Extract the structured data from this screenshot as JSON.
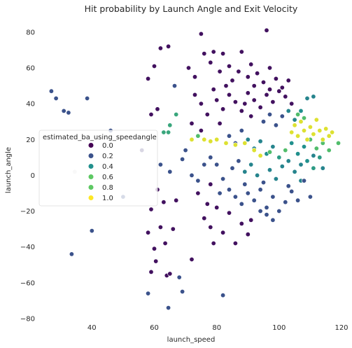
{
  "chart_data": {
    "type": "scatter",
    "title": "Hit probability by Launch Angle and Exit Velocity",
    "xlabel": "launch_speed",
    "ylabel": "launch_angle",
    "xlim": [
      24,
      120
    ],
    "ylim": [
      -82,
      87
    ],
    "xticks": [
      40,
      60,
      80,
      100,
      120
    ],
    "yticks": [
      -80,
      -60,
      -40,
      -20,
      0,
      20,
      40,
      60,
      80
    ],
    "grid": false,
    "hue": "estimated_ba_using_speedangle",
    "colormap": "viridis",
    "legend": {
      "title": "estimated_ba_using_speedangle",
      "placement": "center-left",
      "entries": [
        {
          "label": "0.0",
          "value": 0.0,
          "color": "#440154"
        },
        {
          "label": "0.2",
          "value": 0.2,
          "color": "#3b528b"
        },
        {
          "label": "0.4",
          "value": 0.4,
          "color": "#21908d"
        },
        {
          "label": "0.6",
          "value": 0.6,
          "color": "#5dc863"
        },
        {
          "label": "0.8",
          "value": 0.8,
          "color": "#5dc863"
        },
        {
          "label": "1.0",
          "value": 1.0,
          "color": "#fde725"
        }
      ]
    },
    "points": [
      {
        "x": 27,
        "y": 47,
        "v": 0.25
      },
      {
        "x": 28.5,
        "y": 43,
        "v": 0.25
      },
      {
        "x": 31,
        "y": 36,
        "v": 0.25
      },
      {
        "x": 32.5,
        "y": 35,
        "v": 0.25
      },
      {
        "x": 38.5,
        "y": 43,
        "v": 0.25
      },
      {
        "x": 34.5,
        "y": 2,
        "v": 0.15
      },
      {
        "x": 33.5,
        "y": -44,
        "v": 0.25
      },
      {
        "x": 40,
        "y": -31,
        "v": 0.25
      },
      {
        "x": 46,
        "y": 25,
        "v": 0.25
      },
      {
        "x": 50,
        "y": -12,
        "v": 0.25
      },
      {
        "x": 56,
        "y": 14,
        "v": 0.15
      },
      {
        "x": 58,
        "y": 54,
        "v": 0.05
      },
      {
        "x": 60,
        "y": 61,
        "v": 0.05
      },
      {
        "x": 62,
        "y": 71,
        "v": 0.05
      },
      {
        "x": 64.5,
        "y": 72,
        "v": 0.05
      },
      {
        "x": 59,
        "y": 34,
        "v": 0.05
      },
      {
        "x": 61,
        "y": 37,
        "v": 0.05
      },
      {
        "x": 66.5,
        "y": 50,
        "v": 0.25
      },
      {
        "x": 63,
        "y": 24,
        "v": 0.6
      },
      {
        "x": 64.5,
        "y": 24,
        "v": 0.6
      },
      {
        "x": 65,
        "y": 28,
        "v": 0.6
      },
      {
        "x": 67,
        "y": 34,
        "v": 0.6
      },
      {
        "x": 58,
        "y": -32,
        "v": 0.05
      },
      {
        "x": 58,
        "y": -66,
        "v": 0.25
      },
      {
        "x": 59,
        "y": -54,
        "v": 0.05
      },
      {
        "x": 60,
        "y": -41,
        "v": 0.05
      },
      {
        "x": 60.5,
        "y": -48,
        "v": 0.05
      },
      {
        "x": 62,
        "y": -29,
        "v": 0.05
      },
      {
        "x": 63.5,
        "y": -38,
        "v": 0.05
      },
      {
        "x": 64,
        "y": -56,
        "v": 0.05
      },
      {
        "x": 64.5,
        "y": -74,
        "v": 0.25
      },
      {
        "x": 65,
        "y": -55,
        "v": 0.05
      },
      {
        "x": 66,
        "y": -30,
        "v": 0.05
      },
      {
        "x": 68,
        "y": -57,
        "v": 0.25
      },
      {
        "x": 69,
        "y": -65,
        "v": 0.25
      },
      {
        "x": 72,
        "y": -47,
        "v": 0.05
      },
      {
        "x": 82,
        "y": -67,
        "v": 0.25
      },
      {
        "x": 59,
        "y": -19,
        "v": 0.05
      },
      {
        "x": 61,
        "y": -8,
        "v": 0.05
      },
      {
        "x": 63,
        "y": -15,
        "v": 0.05
      },
      {
        "x": 62,
        "y": 6,
        "v": 0.25
      },
      {
        "x": 65,
        "y": 2,
        "v": 0.25
      },
      {
        "x": 67,
        "y": -14,
        "v": 0.05
      },
      {
        "x": 69,
        "y": 9,
        "v": 0.25
      },
      {
        "x": 70,
        "y": 14,
        "v": 0.25
      },
      {
        "x": 72,
        "y": 0,
        "v": 0.25
      },
      {
        "x": 74,
        "y": -10,
        "v": 0.05
      },
      {
        "x": 76,
        "y": -24,
        "v": 0.05
      },
      {
        "x": 78,
        "y": -29,
        "v": 0.05
      },
      {
        "x": 80,
        "y": -18,
        "v": 0.05
      },
      {
        "x": 82,
        "y": -32,
        "v": 0.05
      },
      {
        "x": 84,
        "y": -21,
        "v": 0.05
      },
      {
        "x": 86,
        "y": -38,
        "v": 0.05
      },
      {
        "x": 88,
        "y": -27,
        "v": 0.05
      },
      {
        "x": 90,
        "y": -33,
        "v": 0.05
      },
      {
        "x": 91,
        "y": -25,
        "v": 0.05
      },
      {
        "x": 78,
        "y": -5,
        "v": 0.05
      },
      {
        "x": 76,
        "y": 6,
        "v": 0.25
      },
      {
        "x": 74,
        "y": -3,
        "v": 0.25
      },
      {
        "x": 77,
        "y": -16,
        "v": 0.05
      },
      {
        "x": 81,
        "y": -10,
        "v": 0.25
      },
      {
        "x": 79,
        "y": -38,
        "v": 0.05
      },
      {
        "x": 71,
        "y": 60,
        "v": 0.05
      },
      {
        "x": 73,
        "y": 55,
        "v": 0.05
      },
      {
        "x": 75,
        "y": 79,
        "v": 0.05
      },
      {
        "x": 76,
        "y": 68,
        "v": 0.05
      },
      {
        "x": 78,
        "y": 63,
        "v": 0.05
      },
      {
        "x": 79,
        "y": 69,
        "v": 0.05
      },
      {
        "x": 81,
        "y": 58,
        "v": 0.05
      },
      {
        "x": 82,
        "y": 68,
        "v": 0.05
      },
      {
        "x": 84,
        "y": 61,
        "v": 0.05
      },
      {
        "x": 85,
        "y": 53,
        "v": 0.05
      },
      {
        "x": 87,
        "y": 58,
        "v": 0.05
      },
      {
        "x": 88,
        "y": 69,
        "v": 0.05
      },
      {
        "x": 90,
        "y": 55,
        "v": 0.05
      },
      {
        "x": 91,
        "y": 62,
        "v": 0.05
      },
      {
        "x": 93,
        "y": 57,
        "v": 0.05
      },
      {
        "x": 95,
        "y": 52,
        "v": 0.05
      },
      {
        "x": 96,
        "y": 81,
        "v": 0.05
      },
      {
        "x": 97,
        "y": 60,
        "v": 0.05
      },
      {
        "x": 99,
        "y": 54,
        "v": 0.05
      },
      {
        "x": 101,
        "y": 49,
        "v": 0.05
      },
      {
        "x": 103,
        "y": 53,
        "v": 0.05
      },
      {
        "x": 73,
        "y": 45,
        "v": 0.05
      },
      {
        "x": 75,
        "y": 40,
        "v": 0.05
      },
      {
        "x": 77,
        "y": 34,
        "v": 0.05
      },
      {
        "x": 80,
        "y": 42,
        "v": 0.05
      },
      {
        "x": 82,
        "y": 37,
        "v": 0.05
      },
      {
        "x": 84,
        "y": 45,
        "v": 0.05
      },
      {
        "x": 86,
        "y": 41,
        "v": 0.05
      },
      {
        "x": 88,
        "y": 36,
        "v": 0.05
      },
      {
        "x": 90,
        "y": 46,
        "v": 0.05
      },
      {
        "x": 92,
        "y": 42,
        "v": 0.05
      },
      {
        "x": 94,
        "y": 38,
        "v": 0.05
      },
      {
        "x": 96,
        "y": 45,
        "v": 0.05
      },
      {
        "x": 98,
        "y": 41,
        "v": 0.05
      },
      {
        "x": 100,
        "y": 47,
        "v": 0.05
      },
      {
        "x": 102,
        "y": 44,
        "v": 0.05
      },
      {
        "x": 104,
        "y": 40,
        "v": 0.05
      },
      {
        "x": 95,
        "y": 30,
        "v": 0.25
      },
      {
        "x": 97,
        "y": 34,
        "v": 0.25
      },
      {
        "x": 99,
        "y": 28,
        "v": 0.25
      },
      {
        "x": 101,
        "y": 33,
        "v": 0.25
      },
      {
        "x": 103,
        "y": 36,
        "v": 0.45
      },
      {
        "x": 105,
        "y": 31,
        "v": 0.45
      },
      {
        "x": 107,
        "y": 36,
        "v": 0.5
      },
      {
        "x": 109,
        "y": 43,
        "v": 0.45
      },
      {
        "x": 111,
        "y": 44,
        "v": 0.45
      },
      {
        "x": 84,
        "y": 22,
        "v": 0.25
      },
      {
        "x": 86,
        "y": 18,
        "v": 0.25
      },
      {
        "x": 88,
        "y": 25,
        "v": 0.25
      },
      {
        "x": 90,
        "y": 20,
        "v": 0.45
      },
      {
        "x": 92,
        "y": 15,
        "v": 0.45
      },
      {
        "x": 94,
        "y": 19,
        "v": 0.45
      },
      {
        "x": 96,
        "y": 12,
        "v": 0.5
      },
      {
        "x": 98,
        "y": 16,
        "v": 0.45
      },
      {
        "x": 100,
        "y": 10,
        "v": 0.55
      },
      {
        "x": 102,
        "y": 14,
        "v": 0.7
      },
      {
        "x": 104,
        "y": 18,
        "v": 0.5
      },
      {
        "x": 106,
        "y": 12,
        "v": 0.5
      },
      {
        "x": 108,
        "y": 16,
        "v": 0.5
      },
      {
        "x": 110,
        "y": 20,
        "v": 0.7
      },
      {
        "x": 112,
        "y": 15,
        "v": 0.7
      },
      {
        "x": 114,
        "y": 18,
        "v": 0.7
      },
      {
        "x": 116,
        "y": 14,
        "v": 0.7
      },
      {
        "x": 119,
        "y": 18,
        "v": 0.7
      },
      {
        "x": 85,
        "y": 4,
        "v": 0.25
      },
      {
        "x": 87,
        "y": 8,
        "v": 0.25
      },
      {
        "x": 89,
        "y": 2,
        "v": 0.45
      },
      {
        "x": 91,
        "y": 6,
        "v": 0.45
      },
      {
        "x": 93,
        "y": 0,
        "v": 0.45
      },
      {
        "x": 95,
        "y": -4,
        "v": 0.25
      },
      {
        "x": 97,
        "y": 3,
        "v": 0.45
      },
      {
        "x": 99,
        "y": -2,
        "v": 0.45
      },
      {
        "x": 101,
        "y": 5,
        "v": 0.45
      },
      {
        "x": 103,
        "y": -6,
        "v": 0.25
      },
      {
        "x": 105,
        "y": 2,
        "v": 0.45
      },
      {
        "x": 107,
        "y": -3,
        "v": 0.45
      },
      {
        "x": 109,
        "y": 8,
        "v": 0.5
      },
      {
        "x": 111,
        "y": 4,
        "v": 0.55
      },
      {
        "x": 113,
        "y": 10,
        "v": 0.55
      },
      {
        "x": 84,
        "y": -8,
        "v": 0.25
      },
      {
        "x": 86,
        "y": -12,
        "v": 0.25
      },
      {
        "x": 88,
        "y": -16,
        "v": 0.25
      },
      {
        "x": 90,
        "y": -10,
        "v": 0.25
      },
      {
        "x": 92,
        "y": -14,
        "v": 0.25
      },
      {
        "x": 94,
        "y": -8,
        "v": 0.25
      },
      {
        "x": 96,
        "y": -18,
        "v": 0.25
      },
      {
        "x": 98,
        "y": -12,
        "v": 0.25
      },
      {
        "x": 100,
        "y": -20,
        "v": 0.25
      },
      {
        "x": 102,
        "y": -15,
        "v": 0.25
      },
      {
        "x": 104,
        "y": -9,
        "v": 0.25
      },
      {
        "x": 106,
        "y": -14,
        "v": 0.25
      },
      {
        "x": 108,
        "y": -3,
        "v": 0.25
      },
      {
        "x": 110,
        "y": -12,
        "v": 0.25
      },
      {
        "x": 104,
        "y": 24,
        "v": 0.95
      },
      {
        "x": 105,
        "y": 28,
        "v": 0.95
      },
      {
        "x": 106,
        "y": 22,
        "v": 0.95
      },
      {
        "x": 107,
        "y": 30,
        "v": 0.95
      },
      {
        "x": 108,
        "y": 25,
        "v": 0.95
      },
      {
        "x": 109,
        "y": 20,
        "v": 0.95
      },
      {
        "x": 110,
        "y": 27,
        "v": 0.95
      },
      {
        "x": 111,
        "y": 23,
        "v": 0.95
      },
      {
        "x": 112,
        "y": 31,
        "v": 0.95
      },
      {
        "x": 113,
        "y": 25,
        "v": 0.95
      },
      {
        "x": 114,
        "y": 20,
        "v": 0.95
      },
      {
        "x": 115,
        "y": 26,
        "v": 0.95
      },
      {
        "x": 116,
        "y": 22,
        "v": 0.95
      },
      {
        "x": 117,
        "y": 24,
        "v": 0.95
      },
      {
        "x": 106,
        "y": 34,
        "v": 0.7
      },
      {
        "x": 108,
        "y": 32,
        "v": 0.7
      },
      {
        "x": 76,
        "y": 20,
        "v": 0.95
      },
      {
        "x": 78,
        "y": 19,
        "v": 0.95
      },
      {
        "x": 80,
        "y": 20,
        "v": 0.95
      },
      {
        "x": 83,
        "y": 18,
        "v": 0.95
      },
      {
        "x": 86,
        "y": 17,
        "v": 0.95
      },
      {
        "x": 89,
        "y": 18,
        "v": 0.95
      },
      {
        "x": 92,
        "y": 14,
        "v": 0.95
      },
      {
        "x": 94,
        "y": 11,
        "v": 0.95
      },
      {
        "x": 97,
        "y": 13,
        "v": 0.7
      },
      {
        "x": 72,
        "y": 20,
        "v": 0.95
      },
      {
        "x": 74,
        "y": 22,
        "v": 0.7
      },
      {
        "x": 78,
        "y": 10,
        "v": 0.25
      },
      {
        "x": 80,
        "y": 6,
        "v": 0.25
      },
      {
        "x": 82,
        "y": -2,
        "v": 0.25
      },
      {
        "x": 72,
        "y": 29,
        "v": 0.05
      },
      {
        "x": 75,
        "y": 25,
        "v": 0.05
      },
      {
        "x": 79,
        "y": 48,
        "v": 0.05
      },
      {
        "x": 83,
        "y": 50,
        "v": 0.05
      },
      {
        "x": 92,
        "y": 50,
        "v": 0.05
      },
      {
        "x": 97,
        "y": 48,
        "v": 0.05
      },
      {
        "x": 91,
        "y": 33,
        "v": 0.05
      },
      {
        "x": 89,
        "y": 40,
        "v": 0.05
      },
      {
        "x": 81,
        "y": 29,
        "v": 0.05
      },
      {
        "x": 98,
        "y": -25,
        "v": 0.25
      },
      {
        "x": 96,
        "y": -22,
        "v": 0.25
      },
      {
        "x": 94,
        "y": -20,
        "v": 0.25
      },
      {
        "x": 89,
        "y": -5,
        "v": 0.25
      },
      {
        "x": 103,
        "y": 8,
        "v": 0.45
      },
      {
        "x": 107,
        "y": 6,
        "v": 0.45
      },
      {
        "x": 111,
        "y": 11,
        "v": 0.45
      },
      {
        "x": 114,
        "y": 4,
        "v": 0.45
      }
    ]
  }
}
